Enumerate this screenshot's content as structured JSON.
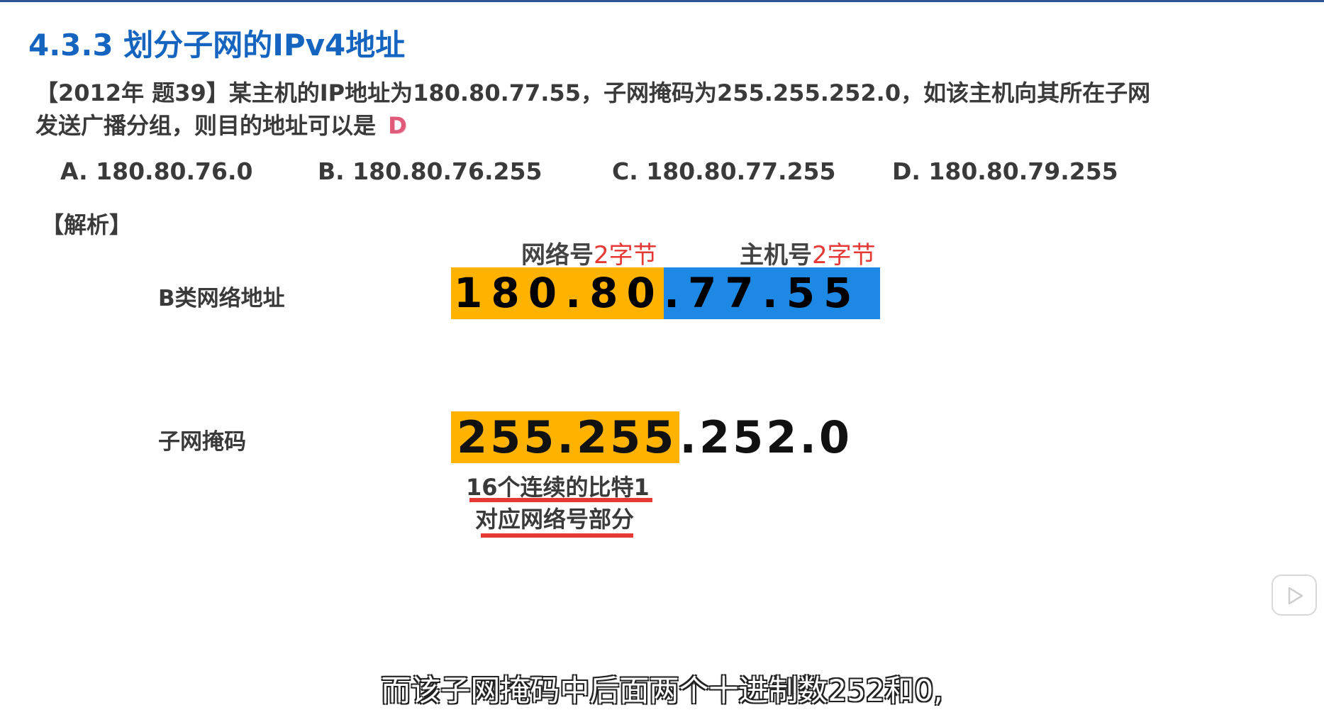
{
  "title": "4.3.3 划分子网的IPv4地址",
  "question": {
    "text_line1": "【2012年 题39】某主机的IP地址为180.80.77.55，子网掩码为255.255.252.0，如该主机向其所在子网",
    "text_line2": "发送广播分组，则目的地址可以是",
    "answer": "D"
  },
  "options": [
    {
      "label": "A. 180.80.76.0"
    },
    {
      "label": "B. 180.80.76.255"
    },
    {
      "label": "C. 180.80.77.255"
    },
    {
      "label": "D. 180.80.79.255"
    }
  ],
  "analysis_label": "【解析】",
  "ip": {
    "row_label": "B类网络地址",
    "net_label": "网络号",
    "net_bytes": "2字节",
    "host_label": "主机号",
    "host_bytes": "2字节",
    "net_part": "180.80",
    "host_part": ".77.55"
  },
  "mask": {
    "row_label": "子网掩码",
    "net_part": "255.255",
    "rest_part": ".252.0",
    "note1": "16个连续的比特1",
    "note2": "对应网络号部分"
  },
  "subtitle": "而该子网掩码中后面两个十进制数252和0,",
  "icons": {
    "play": "play-icon"
  },
  "colors": {
    "title": "#1565c0",
    "net_highlight": "#ffb300",
    "host_highlight": "#1e88e5",
    "accent_red": "#e53935"
  }
}
